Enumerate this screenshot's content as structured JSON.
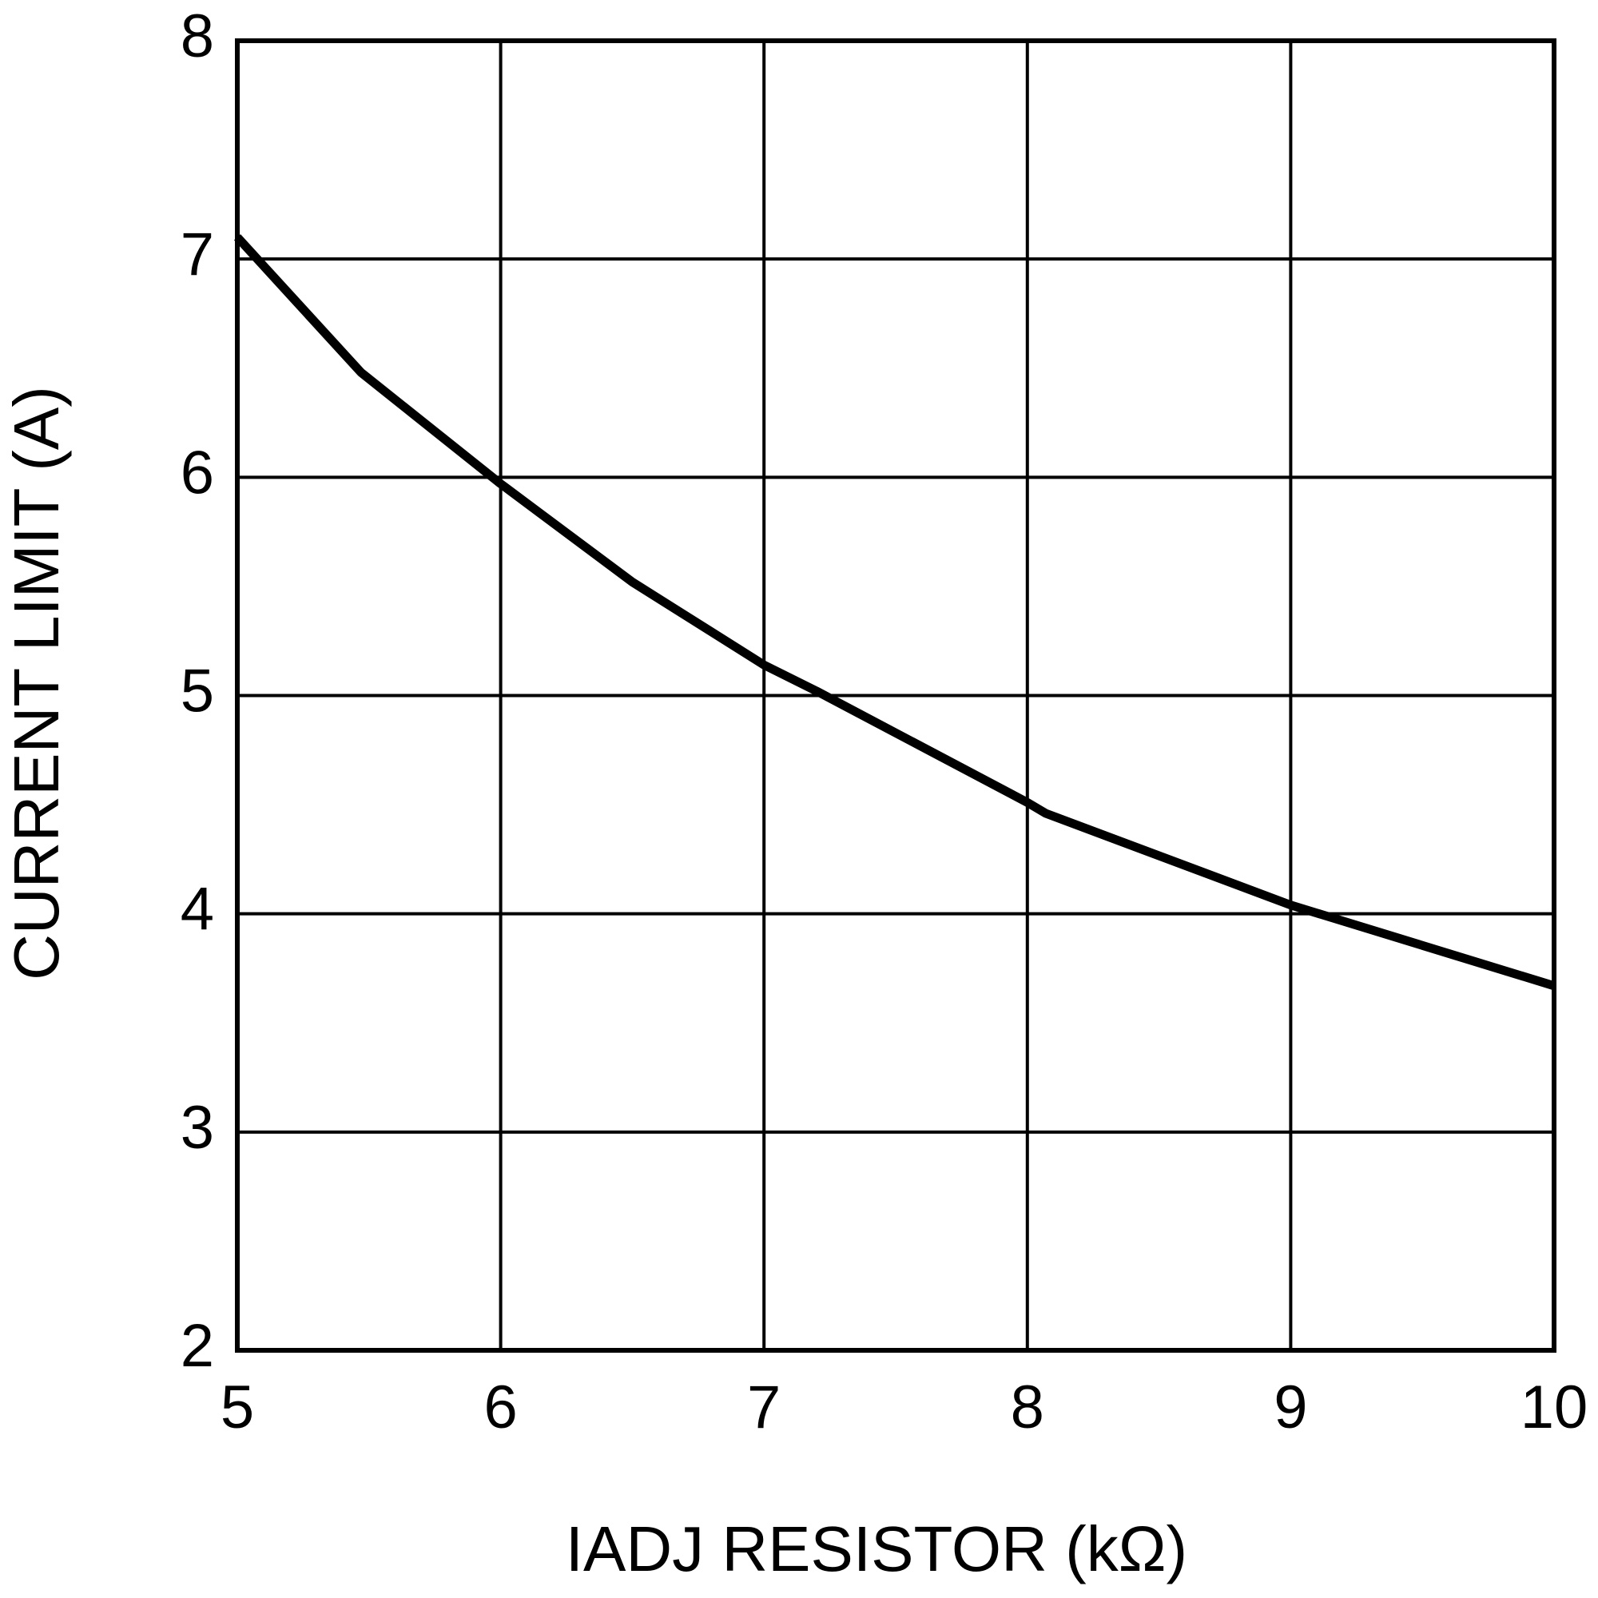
{
  "chart_data": {
    "type": "line",
    "x_label": "IADJ RESISTOR (kΩ)",
    "y_label": "CURRENT LIMIT (A)",
    "x": [
      5,
      5.47,
      6,
      6.5,
      7,
      7.2,
      8,
      8.07,
      9,
      10
    ],
    "series": [
      {
        "color": "#000000",
        "values": [
          7.1,
          6.48,
          5.97,
          5.52,
          5.14,
          5.02,
          4.51,
          4.46,
          4.04,
          3.67
        ]
      }
    ],
    "xlim": [
      5,
      10
    ],
    "xticks": [
      5,
      6,
      7,
      8,
      9,
      10
    ],
    "ylim": [
      2,
      8
    ],
    "yticks": [
      2,
      3,
      4,
      5,
      6,
      7,
      8
    ],
    "grid": true
  }
}
